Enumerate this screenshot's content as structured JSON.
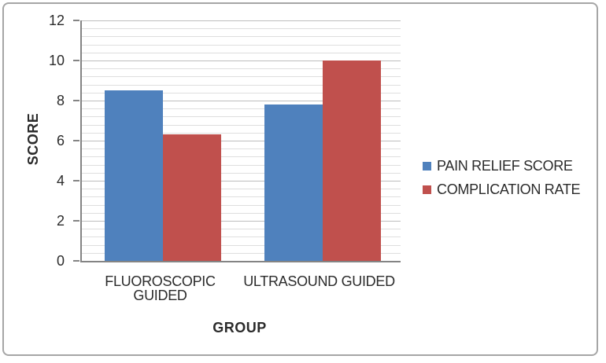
{
  "chart_data": {
    "type": "bar",
    "title": "",
    "categories": [
      "FLUOROSCOPIC GUIDED",
      "ULTRASOUND GUIDED"
    ],
    "series": [
      {
        "name": "PAIN RELIEF SCORE",
        "color": "#4f81bd",
        "values": [
          8.5,
          7.8
        ]
      },
      {
        "name": "COMPLICATION RATE",
        "color": "#c0504d",
        "values": [
          6.3,
          10
        ]
      }
    ],
    "xlabel": "GROUP",
    "ylabel": "SCORE",
    "ylim": [
      0,
      12
    ],
    "y_major_step": 2,
    "y_minor_step": 0.4,
    "y_tick_labels": [
      "0",
      "2",
      "4",
      "6",
      "8",
      "10",
      "12"
    ],
    "grid": "horizontal major+minor",
    "legend_position": "right-middle"
  },
  "colors": {
    "bar_blue": "#4f81bd",
    "bar_red": "#c0504d",
    "axis_line": "#848484",
    "grid_major": "#bdbdbd",
    "grid_minor": "#dedede",
    "text": "#2b2b2b",
    "chart_border": "#a6a6a6",
    "background": "#ffffff"
  }
}
